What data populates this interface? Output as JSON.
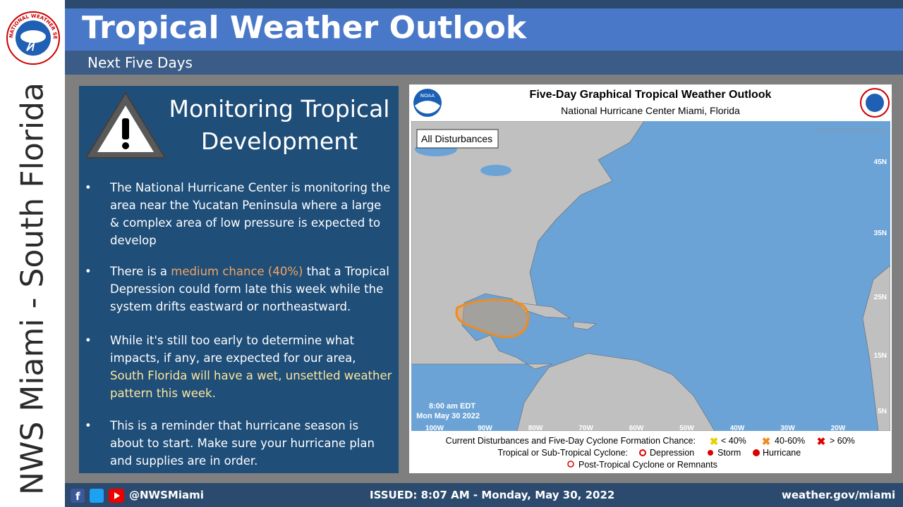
{
  "logo": {
    "text": "NATIONAL WEATHER SERVICE"
  },
  "side": {
    "text": "NWS Miami - South Florida"
  },
  "header": {
    "title": "Tropical Weather Outlook",
    "subtitle": "Next Five Days"
  },
  "panel": {
    "heading": "Monitoring Tropical Development",
    "bullets": [
      {
        "parts": [
          "The National Hurricane Center is monitoring the area near the Yucatan Peninsula where a large & complex area of low pressure is expected to develop"
        ]
      },
      {
        "parts": [
          "There is a ",
          "medium chance (40%)",
          " that a Tropical Depression could form late this week while the system drifts eastward or northeastward."
        ]
      },
      {
        "parts": [
          "While it's still too early to determine what impacts, if any, are expected for our area, ",
          "South Florida will have a wet, unsettled weather pattern this week."
        ]
      },
      {
        "parts": [
          "This is a reminder that hurricane season is about to start. Make sure your hurricane plan and supplies are in order."
        ]
      }
    ]
  },
  "map": {
    "title": "Five-Day Graphical Tropical Weather Outlook",
    "subtitle": "National Hurricane Center  Miami, Florida",
    "noaa": "NOAA",
    "tag": "All Disturbances",
    "website": "www.hurricanes.gov",
    "time": "8:00 am EDT",
    "date": "Mon May 30 2022",
    "lat_labels": [
      "45N",
      "35N",
      "25N",
      "15N",
      "5N"
    ],
    "lon_labels": [
      "100W",
      "90W",
      "80W",
      "70W",
      "60W",
      "50W",
      "40W",
      "30W",
      "20W"
    ],
    "legend": {
      "row1": "Current Disturbances and Five-Day Cyclone Formation Chance:",
      "low": "< 40%",
      "mid": "40-60%",
      "high": "> 60%",
      "row2": "Tropical or Sub-Tropical Cyclone:",
      "depression": "Depression",
      "storm": "Storm",
      "hurricane": "Hurricane",
      "row3": "Post-Tropical Cyclone or Remnants"
    }
  },
  "footer": {
    "handle": "@NWSMiami",
    "issued": "ISSUED: 8:07 AM - Monday, May 30, 2022",
    "site": "weather.gov/miami"
  }
}
